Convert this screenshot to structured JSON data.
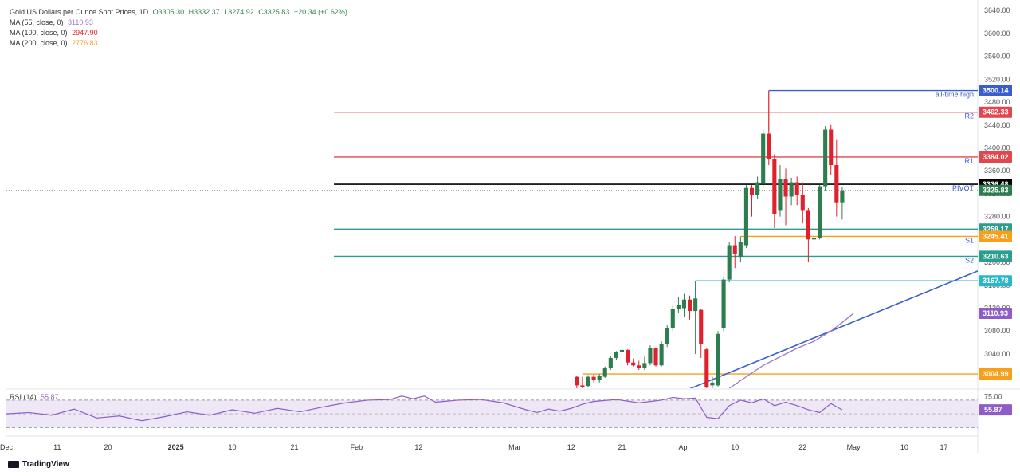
{
  "legend": {
    "title": "Gold US Dollars per Ounce Spot Prices, 1D",
    "open": "O3305.30",
    "high": "H3332.37",
    "low": "L3274.92",
    "close": "C3325.83",
    "change": "+20.34 (+0.62%)",
    "ma55_label": "MA (55, close, 0)",
    "ma55_value": "3110.93",
    "ma100_label": "MA (100, close, 0)",
    "ma100_value": "2947.90",
    "ma200_label": "MA (200, close, 0)",
    "ma200_value": "2776.83"
  },
  "rsi": {
    "label": "RSI (14)",
    "value": "55.87"
  },
  "brand": "TradingView",
  "colors": {
    "up": "#2e7d4f",
    "down": "#e0202d",
    "resistance": "#e0474e",
    "support": "#2a9d8f",
    "pivot": "#000000",
    "orange": "#f59f1b",
    "cyan": "#28b6c9",
    "trend": "#3a5fcd",
    "ma55": "#a077c5",
    "rsi": "#8e5ec6",
    "rsi_band": "#ede7f6"
  },
  "chart_data": {
    "type": "candlestick",
    "title": "Gold US Dollars per Ounce Spot Prices, 1D",
    "ylim": [
      2980,
      3650
    ],
    "y_ticks": [
      3000,
      3040,
      3080,
      3120,
      3160,
      3200,
      3240,
      3280,
      3320,
      3360,
      3400,
      3440,
      3480,
      3520,
      3560,
      3600,
      3640
    ],
    "y_tick_labels": [
      "3000.00",
      "3040.00",
      "3080.00",
      "3120.00",
      "3160.00",
      "3200.00",
      "3240.00",
      "3280.00",
      "3320.00",
      "3360.00",
      "3400.00",
      "3440.00",
      "3480.00",
      "3520.00",
      "3560.00",
      "3600.00",
      "3640.00"
    ],
    "x_tick_labels": [
      {
        "label": "Dec",
        "day": 0
      },
      {
        "label": "11",
        "day": 9
      },
      {
        "label": "20",
        "day": 18
      },
      {
        "label": "2025",
        "day": 30
      },
      {
        "label": "10",
        "day": 40
      },
      {
        "label": "21",
        "day": 51
      },
      {
        "label": "Feb",
        "day": 62
      },
      {
        "label": "12",
        "day": 73
      },
      {
        "label": "Mar",
        "day": 90
      },
      {
        "label": "12",
        "day": 100
      },
      {
        "label": "21",
        "day": 109
      },
      {
        "label": "Apr",
        "day": 120
      },
      {
        "label": "10",
        "day": 129
      },
      {
        "label": "22",
        "day": 141
      },
      {
        "label": "May",
        "day": 150
      },
      {
        "label": "10",
        "day": 159
      },
      {
        "label": "17",
        "day": 166
      }
    ],
    "x_range": [
      0,
      172
    ],
    "candles": [
      {
        "day": 101,
        "o": 3000,
        "h": 3002,
        "l": 2980,
        "c": 2985
      },
      {
        "day": 102,
        "o": 2985,
        "h": 3000,
        "l": 2978,
        "c": 2982
      },
      {
        "day": 103,
        "o": 2984,
        "h": 3003,
        "l": 2982,
        "c": 3000
      },
      {
        "day": 104,
        "o": 3000,
        "h": 3004,
        "l": 2990,
        "c": 2995
      },
      {
        "day": 105,
        "o": 2995,
        "h": 3005,
        "l": 2990,
        "c": 3002
      },
      {
        "day": 106,
        "o": 3000,
        "h": 3018,
        "l": 2998,
        "c": 3015
      },
      {
        "day": 107,
        "o": 3015,
        "h": 3036,
        "l": 3012,
        "c": 3033
      },
      {
        "day": 108,
        "o": 3033,
        "h": 3045,
        "l": 3030,
        "c": 3043
      },
      {
        "day": 109,
        "o": 3043,
        "h": 3057,
        "l": 3032,
        "c": 3047
      },
      {
        "day": 110,
        "o": 3047,
        "h": 3048,
        "l": 3020,
        "c": 3025
      },
      {
        "day": 111,
        "o": 3025,
        "h": 3032,
        "l": 3018,
        "c": 3020
      },
      {
        "day": 112,
        "o": 3020,
        "h": 3028,
        "l": 3012,
        "c": 3016
      },
      {
        "day": 113,
        "o": 3016,
        "h": 3035,
        "l": 3012,
        "c": 3024
      },
      {
        "day": 114,
        "o": 3024,
        "h": 3055,
        "l": 3020,
        "c": 3050
      },
      {
        "day": 115,
        "o": 3050,
        "h": 3051,
        "l": 3018,
        "c": 3020
      },
      {
        "day": 116,
        "o": 3020,
        "h": 3062,
        "l": 3018,
        "c": 3057
      },
      {
        "day": 117,
        "o": 3057,
        "h": 3090,
        "l": 3052,
        "c": 3085
      },
      {
        "day": 118,
        "o": 3085,
        "h": 3125,
        "l": 3080,
        "c": 3119
      },
      {
        "day": 119,
        "o": 3119,
        "h": 3140,
        "l": 3112,
        "c": 3125
      },
      {
        "day": 120,
        "o": 3120,
        "h": 3145,
        "l": 3105,
        "c": 3135
      },
      {
        "day": 121,
        "o": 3135,
        "h": 3142,
        "l": 3100,
        "c": 3115
      },
      {
        "day": 122,
        "o": 3115,
        "h": 3167,
        "l": 3040,
        "c": 3137
      },
      {
        "day": 123,
        "o": 3117,
        "h": 3118,
        "l": 3033,
        "c": 3058
      },
      {
        "day": 124,
        "o": 3048,
        "h": 3050,
        "l": 2970,
        "c": 2982
      },
      {
        "day": 125,
        "o": 2985,
        "h": 3000,
        "l": 2960,
        "c": 2990
      },
      {
        "day": 126,
        "o": 2985,
        "h": 3080,
        "l": 2983,
        "c": 3075
      },
      {
        "day": 127,
        "o": 3085,
        "h": 3175,
        "l": 3080,
        "c": 3170
      },
      {
        "day": 128,
        "o": 3170,
        "h": 3235,
        "l": 3165,
        "c": 3230
      },
      {
        "day": 129,
        "o": 3230,
        "h": 3246,
        "l": 3190,
        "c": 3215
      },
      {
        "day": 130,
        "o": 3210,
        "h": 3245,
        "l": 3200,
        "c": 3235
      },
      {
        "day": 131,
        "o": 3230,
        "h": 3335,
        "l": 3225,
        "c": 3330
      },
      {
        "day": 132,
        "o": 3330,
        "h": 3335,
        "l": 3280,
        "c": 3318
      },
      {
        "day": 133,
        "o": 3318,
        "h": 3350,
        "l": 3310,
        "c": 3340
      },
      {
        "day": 134,
        "o": 3338,
        "h": 3432,
        "l": 3330,
        "c": 3425
      },
      {
        "day": 135,
        "o": 3425,
        "h": 3500,
        "l": 3370,
        "c": 3380
      },
      {
        "day": 136,
        "o": 3380,
        "h": 3389,
        "l": 3260,
        "c": 3285
      },
      {
        "day": 137,
        "o": 3290,
        "h": 3370,
        "l": 3280,
        "c": 3345
      },
      {
        "day": 138,
        "o": 3345,
        "h": 3364,
        "l": 3265,
        "c": 3315
      },
      {
        "day": 139,
        "o": 3315,
        "h": 3348,
        "l": 3300,
        "c": 3340
      },
      {
        "day": 140,
        "o": 3340,
        "h": 3350,
        "l": 3300,
        "c": 3318
      },
      {
        "day": 141,
        "o": 3318,
        "h": 3340,
        "l": 3268,
        "c": 3290
      },
      {
        "day": 142,
        "o": 3290,
        "h": 3295,
        "l": 3200,
        "c": 3240
      },
      {
        "day": 143,
        "o": 3240,
        "h": 3270,
        "l": 3226,
        "c": 3243
      },
      {
        "day": 144,
        "o": 3243,
        "h": 3335,
        "l": 3240,
        "c": 3333
      },
      {
        "day": 145,
        "o": 3333,
        "h": 3438,
        "l": 3325,
        "c": 3432
      },
      {
        "day": 146,
        "o": 3432,
        "h": 3440,
        "l": 3352,
        "c": 3370
      },
      {
        "day": 147,
        "o": 3370,
        "h": 3415,
        "l": 3280,
        "c": 3305
      },
      {
        "day": 148,
        "o": 3305,
        "h": 3332.37,
        "l": 3274.92,
        "c": 3325.83
      }
    ],
    "ma55": [
      {
        "day": 128,
        "v": 2980
      },
      {
        "day": 131,
        "v": 3000
      },
      {
        "day": 134,
        "v": 3020
      },
      {
        "day": 137,
        "v": 3035
      },
      {
        "day": 140,
        "v": 3050
      },
      {
        "day": 143,
        "v": 3062
      },
      {
        "day": 146,
        "v": 3080
      },
      {
        "day": 148,
        "v": 3095
      },
      {
        "day": 150,
        "v": 3110.93
      }
    ],
    "trendline": [
      {
        "day": 120,
        "v": 2975
      },
      {
        "day": 172,
        "v": 3185
      }
    ],
    "levels": [
      {
        "name": "all-time high",
        "value": 3500.14,
        "label": "3500.14",
        "tag": "all-time high",
        "color_key": "trend",
        "start_day": 135
      },
      {
        "name": "R2",
        "value": 3462.33,
        "label": "3462.33",
        "tag": "R2",
        "color_key": "resistance",
        "start_day": 58
      },
      {
        "name": "R1",
        "value": 3384.02,
        "label": "3384.02",
        "tag": "R1",
        "color_key": "resistance",
        "start_day": 58
      },
      {
        "name": "PIVOT",
        "value": 3336.48,
        "label": "3336.48",
        "tag": "PIVOT",
        "color_key": "pivot",
        "start_day": 58
      },
      {
        "name": "S1",
        "value": 3258.17,
        "label": "3258.17",
        "tag": "",
        "color_key": "support",
        "start_day": 58
      },
      {
        "name": "S1b",
        "value": 3245.41,
        "label": "3245.41",
        "tag": "S1",
        "color_key": "orange",
        "start_day": 130
      },
      {
        "name": "S2",
        "value": 3210.63,
        "label": "3210.63",
        "tag": "S2",
        "color_key": "support",
        "start_day": 58
      },
      {
        "name": "swing",
        "value": 3167.78,
        "label": "3167.78",
        "tag": "",
        "color_key": "cyan",
        "start_day": 122
      },
      {
        "name": "low",
        "value": 3004.99,
        "label": "3004.99",
        "tag": "",
        "color_key": "orange",
        "start_day": 102
      }
    ],
    "current_price": {
      "value": 3325.83,
      "label": "3325.83"
    },
    "ma55_tag": {
      "value": 3110.93,
      "label": "3110.93"
    },
    "rsi_ylim": [
      20,
      85
    ],
    "rsi_ticks": [
      {
        "value": 75,
        "label": "75.00"
      }
    ],
    "rsi_bands": [
      70,
      30
    ],
    "rsi_series": [
      {
        "day": 0,
        "v": 50
      },
      {
        "day": 4,
        "v": 52
      },
      {
        "day": 8,
        "v": 48
      },
      {
        "day": 12,
        "v": 57
      },
      {
        "day": 16,
        "v": 44
      },
      {
        "day": 20,
        "v": 47
      },
      {
        "day": 24,
        "v": 40
      },
      {
        "day": 28,
        "v": 46
      },
      {
        "day": 32,
        "v": 53
      },
      {
        "day": 36,
        "v": 48
      },
      {
        "day": 40,
        "v": 56
      },
      {
        "day": 44,
        "v": 51
      },
      {
        "day": 48,
        "v": 58
      },
      {
        "day": 52,
        "v": 53
      },
      {
        "day": 56,
        "v": 60
      },
      {
        "day": 60,
        "v": 66
      },
      {
        "day": 64,
        "v": 70
      },
      {
        "day": 68,
        "v": 71
      },
      {
        "day": 70,
        "v": 76
      },
      {
        "day": 72,
        "v": 72
      },
      {
        "day": 74,
        "v": 76
      },
      {
        "day": 76,
        "v": 67
      },
      {
        "day": 80,
        "v": 70
      },
      {
        "day": 84,
        "v": 71
      },
      {
        "day": 88,
        "v": 66
      },
      {
        "day": 92,
        "v": 56
      },
      {
        "day": 94,
        "v": 52
      },
      {
        "day": 96,
        "v": 57
      },
      {
        "day": 98,
        "v": 54
      },
      {
        "day": 100,
        "v": 58
      },
      {
        "day": 102,
        "v": 64
      },
      {
        "day": 104,
        "v": 68
      },
      {
        "day": 108,
        "v": 71
      },
      {
        "day": 112,
        "v": 66
      },
      {
        "day": 116,
        "v": 70
      },
      {
        "day": 118,
        "v": 74
      },
      {
        "day": 120,
        "v": 72
      },
      {
        "day": 122,
        "v": 73
      },
      {
        "day": 124,
        "v": 45
      },
      {
        "day": 126,
        "v": 43
      },
      {
        "day": 128,
        "v": 62
      },
      {
        "day": 130,
        "v": 70
      },
      {
        "day": 132,
        "v": 66
      },
      {
        "day": 134,
        "v": 72
      },
      {
        "day": 136,
        "v": 62
      },
      {
        "day": 138,
        "v": 67
      },
      {
        "day": 140,
        "v": 62
      },
      {
        "day": 142,
        "v": 56
      },
      {
        "day": 144,
        "v": 52
      },
      {
        "day": 146,
        "v": 65
      },
      {
        "day": 148,
        "v": 55.87
      }
    ]
  }
}
